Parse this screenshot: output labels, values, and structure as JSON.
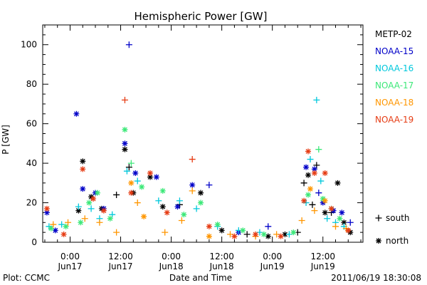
{
  "chart_data": {
    "type": "scatter",
    "title": "Hemispheric Power [GW]",
    "ylabel": "P [GW]",
    "xlabel": "Date and Time",
    "x_units": "hours since 2011-06-17 00:00 UT",
    "xlim": [
      -6.5,
      69.5
    ],
    "ylim": [
      0,
      110
    ],
    "y_ticks": [
      0,
      20,
      40,
      60,
      80,
      100
    ],
    "y_tick_labels": [
      "0",
      "20",
      "40",
      "60",
      "80",
      "100"
    ],
    "x_ticks": [
      {
        "x": 0,
        "time": "0:00",
        "date": "Jun17"
      },
      {
        "x": 12,
        "time": "12:00",
        "date": "Jun17"
      },
      {
        "x": 24,
        "time": "0:00",
        "date": "Jun18"
      },
      {
        "x": 36,
        "time": "12:00",
        "date": "Jun18"
      },
      {
        "x": 48,
        "time": "0:00",
        "date": "Jun19"
      },
      {
        "x": 60,
        "time": "12:00",
        "date": "Jun19"
      }
    ],
    "grid": false,
    "legend_position": "right",
    "marker_legend": [
      {
        "symbol": "+",
        "label": "south"
      },
      {
        "symbol": "*",
        "label": "north"
      }
    ],
    "series": [
      {
        "name": "METP-02",
        "color": "#000000",
        "points": [
          [
            2.0,
            16,
            "*"
          ],
          [
            3.0,
            41,
            "*"
          ],
          [
            5.0,
            23,
            "*"
          ],
          [
            7.5,
            17,
            "*"
          ],
          [
            11.0,
            24,
            "+"
          ],
          [
            13.0,
            47,
            "*"
          ],
          [
            14.0,
            38,
            "+"
          ],
          [
            15.0,
            25,
            "*"
          ],
          [
            19.0,
            33,
            "*"
          ],
          [
            22.0,
            18,
            "*"
          ],
          [
            26.0,
            19,
            "+"
          ],
          [
            31.0,
            25,
            "*"
          ],
          [
            36.0,
            6,
            "*"
          ],
          [
            42.0,
            4,
            "+"
          ],
          [
            47.0,
            3,
            "*"
          ],
          [
            51.0,
            4,
            "*"
          ],
          [
            54.0,
            5,
            "+"
          ],
          [
            55.5,
            30,
            "+"
          ],
          [
            56.5,
            34,
            "*"
          ],
          [
            57.5,
            19,
            "+"
          ],
          [
            58.5,
            39,
            "+"
          ],
          [
            60.5,
            15,
            "*"
          ],
          [
            62.0,
            15,
            "+"
          ],
          [
            63.5,
            30,
            "*"
          ],
          [
            65.0,
            10,
            "*"
          ],
          [
            66.5,
            5,
            "*"
          ]
        ]
      },
      {
        "name": "NOAA-15",
        "color": "#0000c8",
        "points": [
          [
            -5.5,
            15,
            "*"
          ],
          [
            -3.5,
            6,
            "*"
          ],
          [
            1.5,
            65,
            "*"
          ],
          [
            3.0,
            27,
            "*"
          ],
          [
            6.0,
            25,
            "*"
          ],
          [
            8.0,
            17,
            "*"
          ],
          [
            13.0,
            50,
            "*"
          ],
          [
            14.0,
            100,
            "+"
          ],
          [
            15.5,
            35,
            "*"
          ],
          [
            20.5,
            33,
            "*"
          ],
          [
            25.5,
            18,
            "*"
          ],
          [
            29.0,
            29,
            "*"
          ],
          [
            33.0,
            29,
            "+"
          ],
          [
            40.0,
            5,
            "*"
          ],
          [
            47.0,
            8,
            "+"
          ],
          [
            56.0,
            38,
            "*"
          ],
          [
            58.0,
            37,
            "*"
          ],
          [
            59.0,
            25,
            "+"
          ],
          [
            60.0,
            20,
            "*"
          ],
          [
            62.5,
            16,
            "*"
          ],
          [
            64.5,
            15,
            "*"
          ],
          [
            66.5,
            10,
            "+"
          ]
        ]
      },
      {
        "name": "NOAA-16",
        "color": "#00c8dc",
        "points": [
          [
            -5.0,
            8,
            "+"
          ],
          [
            -2.0,
            9,
            "+"
          ],
          [
            2.0,
            18,
            "+"
          ],
          [
            5.0,
            17,
            "+"
          ],
          [
            7.0,
            12,
            "+"
          ],
          [
            10.0,
            14,
            "+"
          ],
          [
            13.5,
            36,
            "+"
          ],
          [
            16.0,
            31,
            "+"
          ],
          [
            21.0,
            21,
            "+"
          ],
          [
            26.0,
            21,
            "+"
          ],
          [
            30.0,
            17,
            "+"
          ],
          [
            35.0,
            8,
            "+"
          ],
          [
            40.0,
            6,
            "+"
          ],
          [
            45.0,
            5,
            "+"
          ],
          [
            52.0,
            4,
            "+"
          ],
          [
            56.0,
            20,
            "+"
          ],
          [
            57.0,
            42,
            "+"
          ],
          [
            58.5,
            72,
            "+"
          ],
          [
            59.5,
            31,
            "+"
          ],
          [
            61.0,
            12,
            "+"
          ],
          [
            63.0,
            10,
            "+"
          ],
          [
            65.0,
            8,
            "+"
          ]
        ]
      },
      {
        "name": "NOAA-17",
        "color": "#3ce878",
        "points": [
          [
            -4.5,
            7,
            "*"
          ],
          [
            -1.0,
            8,
            "*"
          ],
          [
            2.5,
            10,
            "*"
          ],
          [
            4.5,
            20,
            "*"
          ],
          [
            6.5,
            25,
            "*"
          ],
          [
            9.5,
            12,
            "*"
          ],
          [
            13.0,
            57,
            "*"
          ],
          [
            14.5,
            40,
            "+"
          ],
          [
            17.0,
            28,
            "*"
          ],
          [
            22.0,
            26,
            "*"
          ],
          [
            27.0,
            14,
            "*"
          ],
          [
            31.0,
            20,
            "*"
          ],
          [
            35.0,
            9,
            "*"
          ],
          [
            41.0,
            6,
            "*"
          ],
          [
            46.0,
            4,
            "*"
          ],
          [
            53.0,
            5,
            "*"
          ],
          [
            56.5,
            24,
            "*"
          ],
          [
            59.0,
            47,
            "+"
          ],
          [
            60.0,
            22,
            "*"
          ],
          [
            62.0,
            17,
            "*"
          ],
          [
            64.0,
            12,
            "*"
          ]
        ]
      },
      {
        "name": "NOAA-18",
        "color": "#ff9600",
        "points": [
          [
            -4.0,
            9,
            "+"
          ],
          [
            -0.5,
            10,
            "+"
          ],
          [
            3.5,
            12,
            "+"
          ],
          [
            7.0,
            10,
            "+"
          ],
          [
            11.0,
            5,
            "+"
          ],
          [
            14.5,
            30,
            "*"
          ],
          [
            16.0,
            20,
            "+"
          ],
          [
            17.5,
            13,
            "*"
          ],
          [
            22.5,
            5,
            "+"
          ],
          [
            26.5,
            11,
            "+"
          ],
          [
            29.0,
            26,
            "+"
          ],
          [
            33.0,
            3,
            "*"
          ],
          [
            38.0,
            4,
            "+"
          ],
          [
            44.0,
            3,
            "+"
          ],
          [
            49.0,
            4,
            "+"
          ],
          [
            55.0,
            11,
            "+"
          ],
          [
            57.0,
            27,
            "*"
          ],
          [
            58.0,
            16,
            "+"
          ],
          [
            60.5,
            21,
            "*"
          ],
          [
            63.0,
            8,
            "+"
          ],
          [
            65.5,
            7,
            "+"
          ]
        ]
      },
      {
        "name": "NOAA-19",
        "color": "#e63c14",
        "points": [
          [
            -5.5,
            17,
            "*"
          ],
          [
            -1.5,
            4,
            "*"
          ],
          [
            3.0,
            37,
            "*"
          ],
          [
            5.5,
            22,
            "*"
          ],
          [
            8.0,
            16,
            "*"
          ],
          [
            13.0,
            72,
            "+"
          ],
          [
            14.5,
            25,
            "*"
          ],
          [
            19.0,
            35,
            "*"
          ],
          [
            23.0,
            15,
            "*"
          ],
          [
            29.0,
            42,
            "+"
          ],
          [
            33.0,
            8,
            "*"
          ],
          [
            39.0,
            3,
            "*"
          ],
          [
            44.0,
            4,
            "*"
          ],
          [
            50.0,
            3,
            "*"
          ],
          [
            55.5,
            21,
            "*"
          ],
          [
            56.5,
            46,
            "*"
          ],
          [
            58.0,
            35,
            "*"
          ],
          [
            60.5,
            35,
            "*"
          ],
          [
            62.0,
            17,
            "*"
          ],
          [
            66.0,
            6,
            "*"
          ]
        ]
      }
    ]
  },
  "footer": {
    "source": "Plot: CCMC",
    "timestamp": "2011/06/19 18:30:08"
  }
}
